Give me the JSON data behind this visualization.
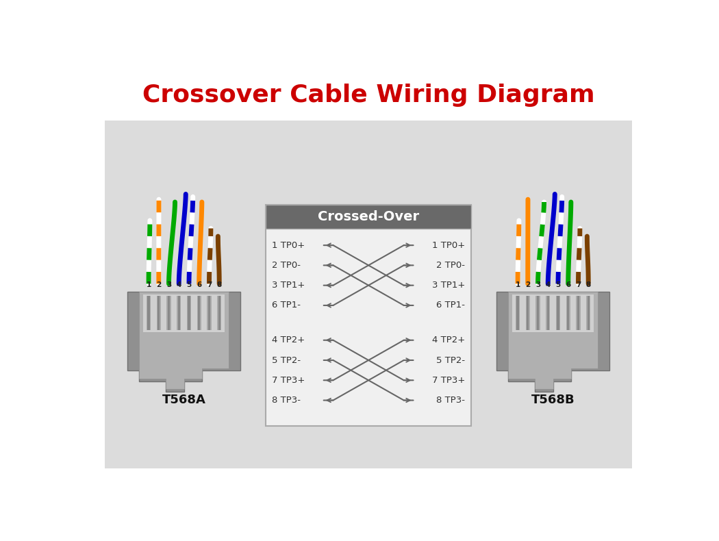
{
  "title": "Crossover Cable Wiring Diagram",
  "title_color": "#cc0000",
  "title_fontsize": 26,
  "background_color": "#dcdcdc",
  "figure_bg": "#ffffff",
  "box_header_color": "#696969",
  "box_header_text": "Crossed-Over",
  "box_body_color": "#f0f0f0",
  "pin_labels_g1_left": [
    "1 TP0+",
    "2 TP0-",
    "3 TP1+",
    "6 TP1-"
  ],
  "pin_labels_g1_right": [
    "1 TP0+",
    "2 TP0-",
    "3 TP1+",
    "6 TP1-"
  ],
  "pin_labels_g2_left": [
    "4 TP2+",
    "5 TP2-",
    "7 TP3+",
    "8 TP3-"
  ],
  "pin_labels_g2_right": [
    "4 TP2+",
    "5 TP2-",
    "7 TP3+",
    "8 TP3-"
  ],
  "pin_numbers": [
    "1",
    "2",
    "3",
    "4",
    "5",
    "6",
    "7",
    "8"
  ],
  "line_color": "#666666",
  "connector_outer": "#909090",
  "connector_mid": "#b0b0b0",
  "connector_inner": "#d0d0d0",
  "connector_pins_bg": "#c8c8c8",
  "label_A": "T568A",
  "label_B": "T568B",
  "wires_A": [
    {
      "solid": false,
      "base": "#ffffff",
      "stripe": "#00aa00"
    },
    {
      "solid": false,
      "base": "#ffffff",
      "stripe": "#ff8800"
    },
    {
      "solid": true,
      "base": "#00aa00",
      "stripe": null
    },
    {
      "solid": true,
      "base": "#0000cc",
      "stripe": null
    },
    {
      "solid": false,
      "base": "#ffffff",
      "stripe": "#0000cc"
    },
    {
      "solid": true,
      "base": "#ff8800",
      "stripe": null
    },
    {
      "solid": false,
      "base": "#ffffff",
      "stripe": "#7b4000"
    },
    {
      "solid": true,
      "base": "#7b4000",
      "stripe": null
    }
  ],
  "wires_B": [
    {
      "solid": false,
      "base": "#ffffff",
      "stripe": "#ff8800"
    },
    {
      "solid": true,
      "base": "#ff8800",
      "stripe": null
    },
    {
      "solid": false,
      "base": "#ffffff",
      "stripe": "#00aa00"
    },
    {
      "solid": true,
      "base": "#0000cc",
      "stripe": null
    },
    {
      "solid": false,
      "base": "#ffffff",
      "stripe": "#0000cc"
    },
    {
      "solid": true,
      "base": "#00aa00",
      "stripe": null
    },
    {
      "solid": false,
      "base": "#ffffff",
      "stripe": "#7b4000"
    },
    {
      "solid": true,
      "base": "#7b4000",
      "stripe": null
    }
  ]
}
